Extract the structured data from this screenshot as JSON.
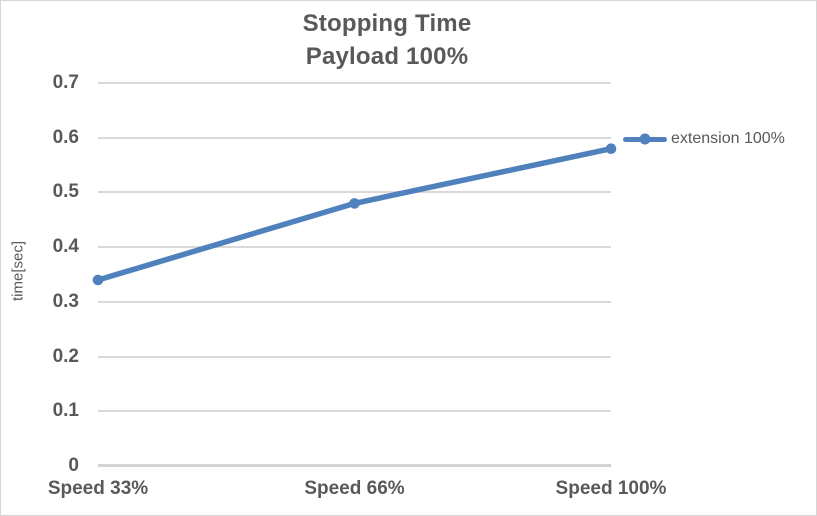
{
  "chart": {
    "title_line1": "Stopping Time",
    "title_line2": "Payload 100%",
    "y_axis_title": "time[sec]",
    "legend_label": "extension 100%"
  },
  "chart_data": {
    "type": "line",
    "title": "Stopping Time",
    "subtitle": "Payload 100%",
    "categories": [
      "Speed 33%",
      "Speed 66%",
      "Speed 100%"
    ],
    "series": [
      {
        "name": "extension 100%",
        "values": [
          0.34,
          0.48,
          0.58
        ],
        "color": "#4F81BD",
        "marker": "circle"
      }
    ],
    "xlabel": "",
    "ylabel": "time[sec]",
    "ylim": [
      0,
      0.7
    ],
    "ytick_step": 0.1,
    "grid": true,
    "legend_position": "right"
  },
  "colors": {
    "series_blue": "#4F81BD",
    "text_gray": "#595959",
    "gridline": "#D9D9D9",
    "axis_line": "#D3D3D3",
    "chart_border": "#D6D6D6",
    "background": "#FFFFFF"
  }
}
